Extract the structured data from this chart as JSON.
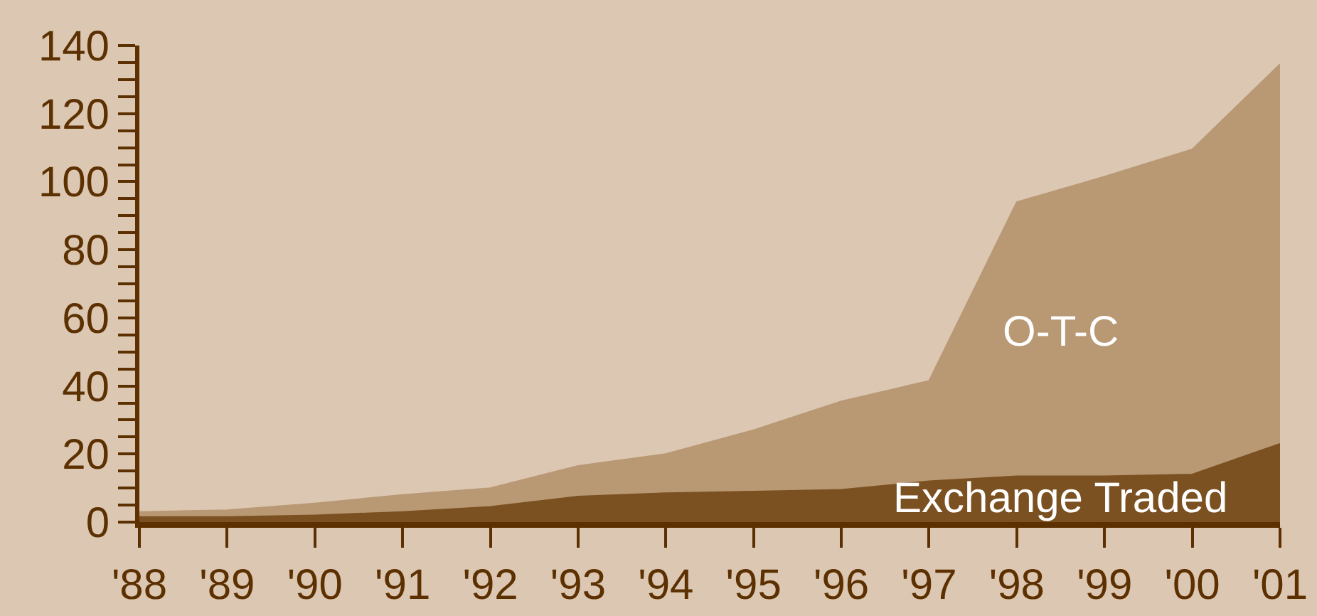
{
  "chart_data": {
    "type": "area",
    "stacked": true,
    "categories": [
      "'88",
      "'89",
      "'90",
      "'91",
      "'92",
      "'93",
      "'94",
      "'95",
      "'96",
      "'97",
      "'98",
      "'99",
      "'00",
      "'01"
    ],
    "series": [
      {
        "name": "Exchange Traded",
        "color": "#7b5121",
        "values": [
          1.5,
          1.5,
          2,
          3,
          4.5,
          7.5,
          8.5,
          9,
          9.5,
          12,
          13.5,
          13.5,
          14,
          23
        ]
      },
      {
        "name": "O-T-C",
        "color": "#b99874",
        "values": [
          1.5,
          2,
          3.5,
          5,
          5.5,
          9,
          11.5,
          18,
          26,
          29.5,
          80.5,
          88,
          95.5,
          111.5
        ]
      }
    ],
    "ylim": [
      0,
      140
    ],
    "yticks": [
      0,
      {
        "value": 5,
        "label": null
      },
      {
        "value": 10,
        "label": null
      },
      {
        "value": 15,
        "label": null
      },
      20,
      {
        "value": 25,
        "label": null
      },
      {
        "value": 30,
        "label": null
      },
      {
        "value": 35,
        "label": null
      },
      40,
      {
        "value": 45,
        "label": null
      },
      {
        "value": 50,
        "label": null
      },
      {
        "value": 55,
        "label": null
      },
      60,
      {
        "value": 65,
        "label": null
      },
      {
        "value": 70,
        "label": null
      },
      {
        "value": 75,
        "label": null
      },
      80,
      {
        "value": 85,
        "label": null
      },
      {
        "value": 90,
        "label": null
      },
      {
        "value": 95,
        "label": null
      },
      100,
      {
        "value": 105,
        "label": null
      },
      {
        "value": 110,
        "label": null
      },
      {
        "value": 115,
        "label": null
      },
      120,
      {
        "value": 125,
        "label": null
      },
      {
        "value": 130,
        "label": null
      },
      {
        "value": 135,
        "label": null
      },
      140
    ]
  }
}
